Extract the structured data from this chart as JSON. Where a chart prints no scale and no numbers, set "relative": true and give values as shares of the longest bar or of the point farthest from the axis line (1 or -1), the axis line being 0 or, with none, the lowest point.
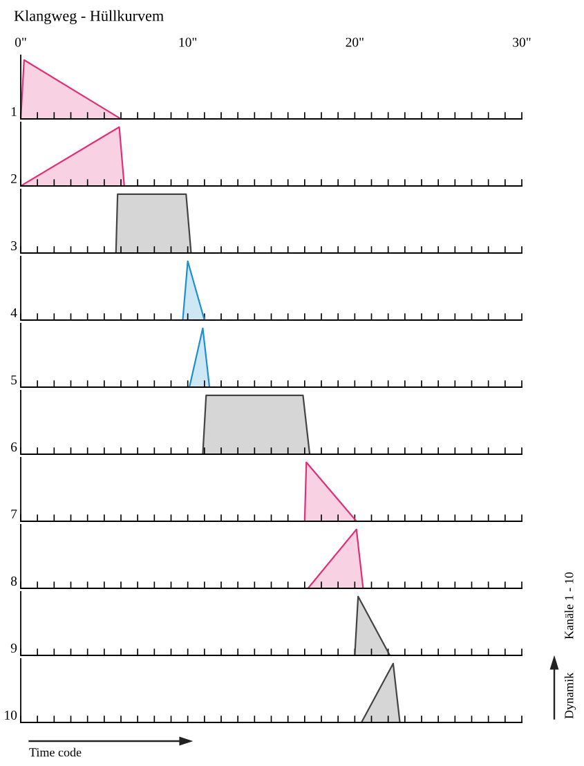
{
  "chart_data": [
    {
      "type": "area",
      "title": "Klangweg - Hüllkurvem",
      "ylabel": "1",
      "relative": true,
      "xlim": [
        0,
        30
      ],
      "xticks": [
        {
          "value": 0,
          "label": "0\""
        },
        {
          "value": 1,
          "label": null
        },
        {
          "value": 2,
          "label": null
        },
        {
          "value": 3,
          "label": null
        },
        {
          "value": 4,
          "label": null
        },
        {
          "value": 5,
          "label": null
        },
        {
          "value": 6,
          "label": null
        },
        {
          "value": 7,
          "label": null
        },
        {
          "value": 8,
          "label": null
        },
        {
          "value": 9,
          "label": null
        },
        {
          "value": 10,
          "label": "10\""
        },
        {
          "value": 11,
          "label": null
        },
        {
          "value": 12,
          "label": null
        },
        {
          "value": 13,
          "label": null
        },
        {
          "value": 14,
          "label": null
        },
        {
          "value": 15,
          "label": null
        },
        {
          "value": 16,
          "label": null
        },
        {
          "value": 17,
          "label": null
        },
        {
          "value": 18,
          "label": null
        },
        {
          "value": 19,
          "label": null
        },
        {
          "value": 20,
          "label": "20\""
        },
        {
          "value": 21,
          "label": null
        },
        {
          "value": 22,
          "label": null
        },
        {
          "value": 23,
          "label": null
        },
        {
          "value": 24,
          "label": null
        },
        {
          "value": 25,
          "label": null
        },
        {
          "value": 26,
          "label": null
        },
        {
          "value": 27,
          "label": null
        },
        {
          "value": 28,
          "label": null
        },
        {
          "value": 29,
          "label": null
        },
        {
          "value": 30,
          "label": "30\""
        }
      ],
      "tick_labels": "x",
      "series": [
        {
          "color": "#e0307a",
          "x": [
            0,
            0.2,
            6
          ],
          "values": [
            0,
            1,
            0
          ]
        }
      ]
    },
    {
      "type": "area",
      "ylabel": "2",
      "relative": true,
      "xlim": [
        0,
        30
      ],
      "xticks": [
        0,
        1,
        2,
        3,
        4,
        5,
        6,
        7,
        8,
        9,
        10,
        11,
        12,
        13,
        14,
        15,
        16,
        17,
        18,
        19,
        20,
        21,
        22,
        23,
        24,
        25,
        26,
        27,
        28,
        29,
        30
      ],
      "tick_labels": false,
      "series": [
        {
          "color": "#e0307a",
          "x": [
            0,
            5.9,
            6.2
          ],
          "values": [
            0,
            1,
            0
          ]
        }
      ]
    },
    {
      "type": "area",
      "ylabel": "3",
      "relative": true,
      "xlim": [
        0,
        30
      ],
      "xticks": [
        0,
        1,
        2,
        3,
        4,
        5,
        6,
        7,
        8,
        9,
        10,
        11,
        12,
        13,
        14,
        15,
        16,
        17,
        18,
        19,
        20,
        21,
        22,
        23,
        24,
        25,
        26,
        27,
        28,
        29,
        30
      ],
      "tick_labels": false,
      "series": [
        {
          "color": "#444444",
          "x": [
            5.7,
            5.8,
            9.9,
            10.2
          ],
          "values": [
            0,
            1,
            1,
            0
          ]
        }
      ]
    },
    {
      "type": "area",
      "ylabel": "4",
      "relative": true,
      "xlim": [
        0,
        30
      ],
      "xticks": [
        0,
        1,
        2,
        3,
        4,
        5,
        6,
        7,
        8,
        9,
        10,
        11,
        12,
        13,
        14,
        15,
        16,
        17,
        18,
        19,
        20,
        21,
        22,
        23,
        24,
        25,
        26,
        27,
        28,
        29,
        30
      ],
      "tick_labels": false,
      "series": [
        {
          "color": "#1e90d0",
          "x": [
            9.7,
            10,
            11
          ],
          "values": [
            0,
            1,
            0
          ]
        }
      ]
    },
    {
      "type": "area",
      "ylabel": "5",
      "relative": true,
      "xlim": [
        0,
        30
      ],
      "xticks": [
        0,
        1,
        2,
        3,
        4,
        5,
        6,
        7,
        8,
        9,
        10,
        11,
        12,
        13,
        14,
        15,
        16,
        17,
        18,
        19,
        20,
        21,
        22,
        23,
        24,
        25,
        26,
        27,
        28,
        29,
        30
      ],
      "tick_labels": false,
      "series": [
        {
          "color": "#1e90d0",
          "x": [
            10.1,
            10.9,
            11.3
          ],
          "values": [
            0,
            1,
            0
          ]
        }
      ]
    },
    {
      "type": "area",
      "ylabel": "6",
      "relative": true,
      "xlim": [
        0,
        30
      ],
      "xticks": [
        0,
        1,
        2,
        3,
        4,
        5,
        6,
        7,
        8,
        9,
        10,
        11,
        12,
        13,
        14,
        15,
        16,
        17,
        18,
        19,
        20,
        21,
        22,
        23,
        24,
        25,
        26,
        27,
        28,
        29,
        30
      ],
      "tick_labels": false,
      "series": [
        {
          "color": "#444444",
          "x": [
            10.9,
            11.1,
            16.9,
            17.3
          ],
          "values": [
            0,
            1,
            1,
            0
          ]
        }
      ]
    },
    {
      "type": "area",
      "ylabel": "7",
      "relative": true,
      "xlim": [
        0,
        30
      ],
      "xticks": [
        0,
        1,
        2,
        3,
        4,
        5,
        6,
        7,
        8,
        9,
        10,
        11,
        12,
        13,
        14,
        15,
        16,
        17,
        18,
        19,
        20,
        21,
        22,
        23,
        24,
        25,
        26,
        27,
        28,
        29,
        30
      ],
      "tick_labels": false,
      "series": [
        {
          "color": "#e0307a",
          "x": [
            17,
            17.1,
            20.1
          ],
          "values": [
            0,
            1,
            0
          ]
        }
      ]
    },
    {
      "type": "area",
      "ylabel": "8",
      "relative": true,
      "xlim": [
        0,
        30
      ],
      "xticks": [
        0,
        1,
        2,
        3,
        4,
        5,
        6,
        7,
        8,
        9,
        10,
        11,
        12,
        13,
        14,
        15,
        16,
        17,
        18,
        19,
        20,
        21,
        22,
        23,
        24,
        25,
        26,
        27,
        28,
        29,
        30
      ],
      "tick_labels": false,
      "series": [
        {
          "color": "#e0307a",
          "x": [
            17.2,
            20.1,
            20.5
          ],
          "values": [
            0,
            1,
            0
          ]
        }
      ]
    },
    {
      "type": "area",
      "ylabel": "9",
      "relative": true,
      "xlim": [
        0,
        30
      ],
      "xticks": [
        0,
        1,
        2,
        3,
        4,
        5,
        6,
        7,
        8,
        9,
        10,
        11,
        12,
        13,
        14,
        15,
        16,
        17,
        18,
        19,
        20,
        21,
        22,
        23,
        24,
        25,
        26,
        27,
        28,
        29,
        30
      ],
      "tick_labels": false,
      "series": [
        {
          "color": "#444444",
          "x": [
            20,
            20.2,
            22.1
          ],
          "values": [
            0,
            1,
            0
          ]
        }
      ]
    },
    {
      "type": "area",
      "ylabel": "10",
      "relative": true,
      "xlim": [
        0,
        30
      ],
      "xticks": [
        0,
        1,
        2,
        3,
        4,
        5,
        6,
        7,
        8,
        9,
        10,
        11,
        12,
        13,
        14,
        15,
        16,
        17,
        18,
        19,
        20,
        21,
        22,
        23,
        24,
        25,
        26,
        27,
        28,
        29,
        30
      ],
      "tick_labels": false,
      "annotations": [
        "Time code",
        "Dynamik",
        "Kanäle 1 - 10"
      ],
      "series": [
        {
          "color": "#444444",
          "x": [
            20.4,
            22.3,
            22.7
          ],
          "values": [
            0,
            1,
            0
          ]
        }
      ]
    }
  ]
}
